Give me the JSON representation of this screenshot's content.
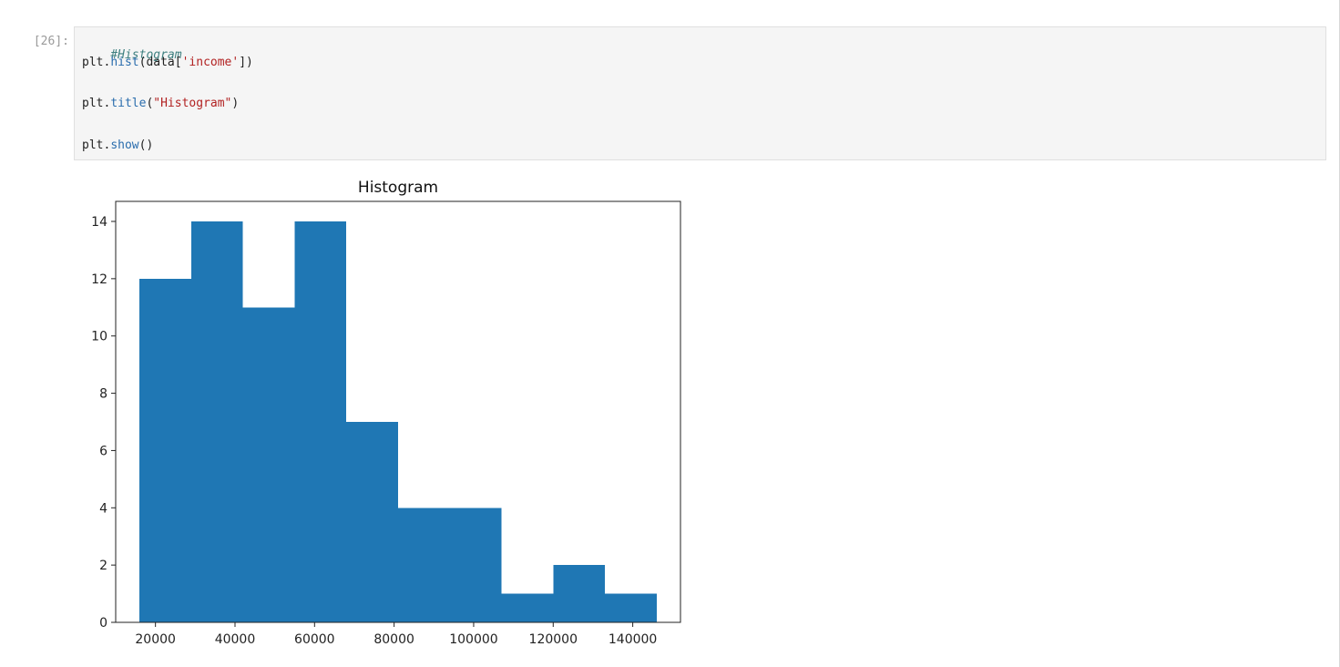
{
  "cell": {
    "prompt": "[26]:",
    "code": {
      "line1_comment": "#Histogram",
      "line2": {
        "a": "plt.",
        "b": "hist",
        "c": "(data[",
        "d": "'income'",
        "e": "])"
      },
      "line3": {
        "a": "plt.",
        "b": "title",
        "c": "(",
        "d": "\"Histogram\"",
        "e": ")"
      },
      "line4": {
        "a": "plt.",
        "b": "show",
        "c": "()"
      }
    }
  },
  "chart_data": {
    "type": "bar",
    "title": "Histogram",
    "xlabel": "",
    "ylabel": "",
    "bin_edges": [
      16000,
      29000,
      42000,
      55000,
      68000,
      81000,
      94000,
      107000,
      120000,
      133000,
      146000
    ],
    "values": [
      12,
      14,
      11,
      14,
      7,
      4,
      4,
      1,
      2,
      1
    ],
    "xlim": [
      10000,
      152000
    ],
    "ylim": [
      0,
      14.7
    ],
    "xticks": [
      20000,
      40000,
      60000,
      80000,
      100000,
      120000,
      140000
    ],
    "yticks": [
      0,
      2,
      4,
      6,
      8,
      10,
      12,
      14
    ],
    "bar_color": "#1f77b4",
    "grid": false
  }
}
